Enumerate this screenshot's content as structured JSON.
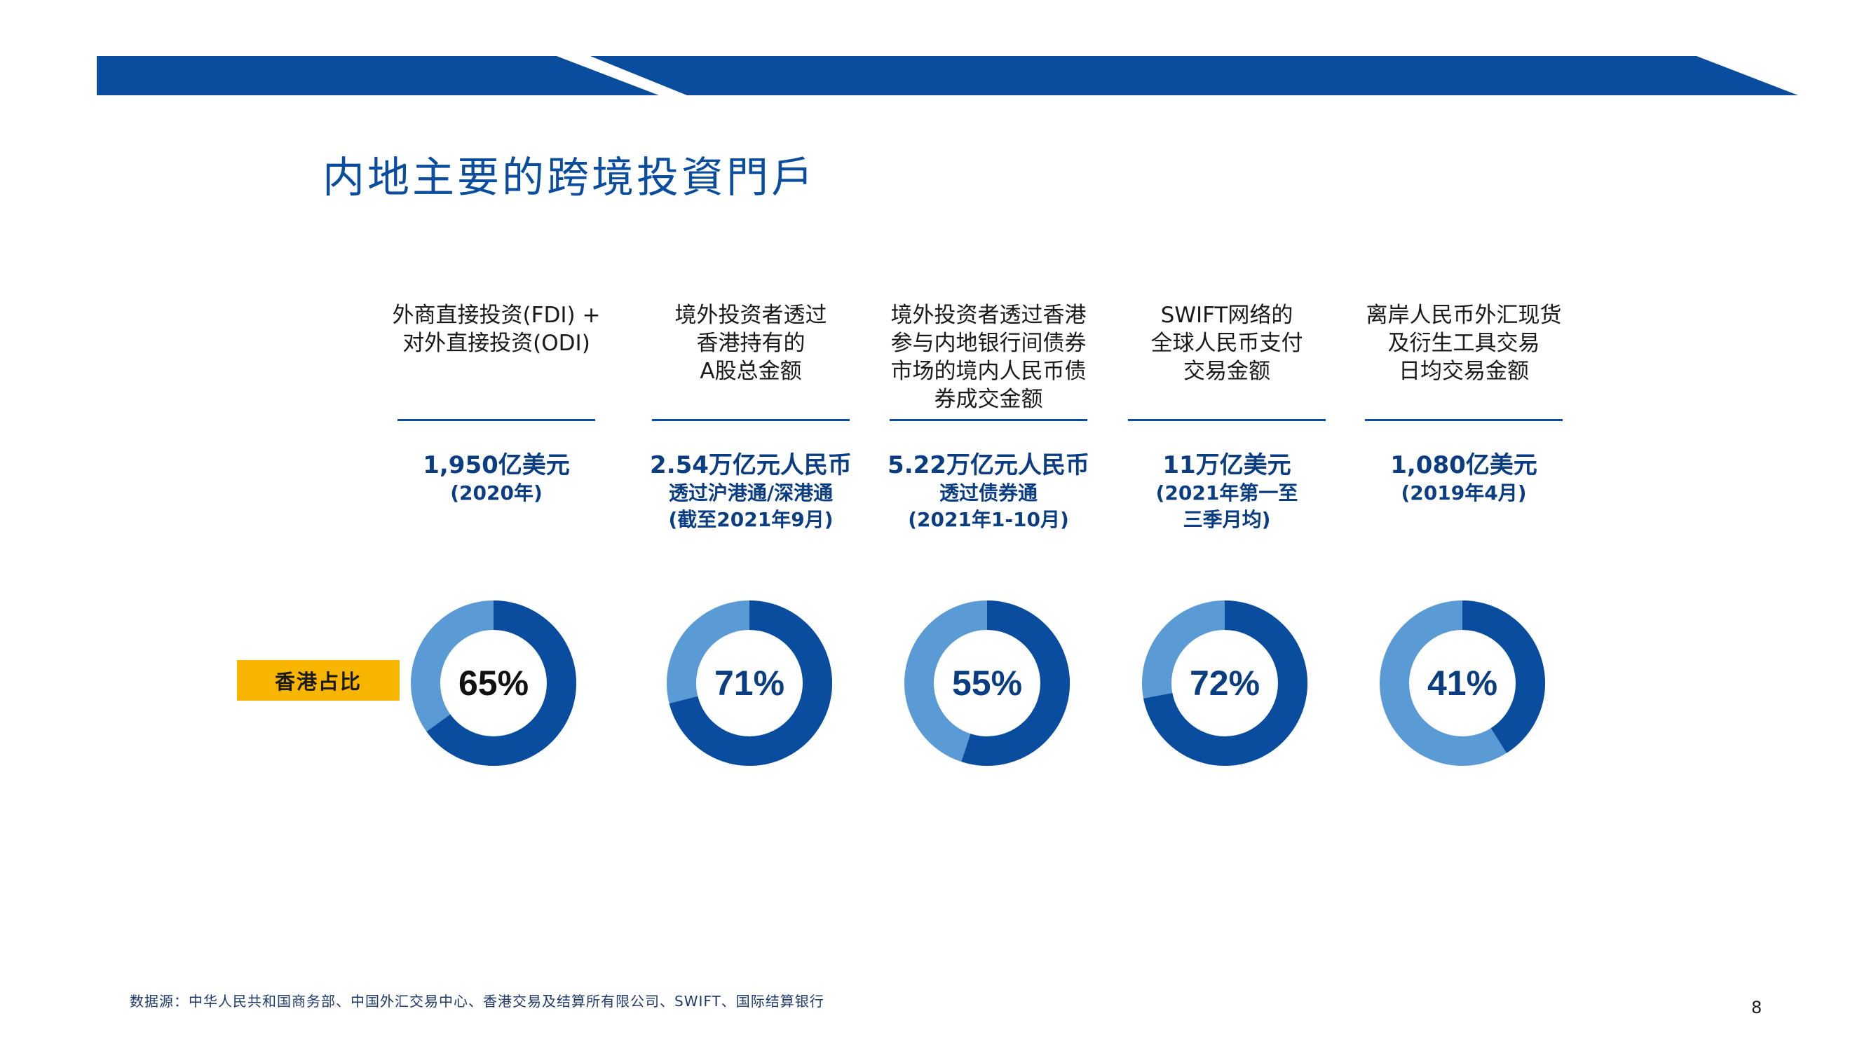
{
  "page": {
    "title": "内地主要的跨境投資門戶",
    "badge_label": "香港占比",
    "source": "数据源：中华人民共和国商务部、中国外汇交易中心、香港交易及结算所有限公司、SWIFT、国际结算银行",
    "page_number": "8"
  },
  "colors": {
    "brand_blue": "#0a4d9e",
    "donut_dark": "#0a4d9e",
    "donut_light": "#5b9bd5",
    "badge_yellow": "#f7b500"
  },
  "columns": [
    {
      "heading": "外商直接投资(FDI) +\n对外直接投资(ODI)",
      "metric": "1,950亿美元",
      "period": "(2020年)"
    },
    {
      "heading": "境外投资者透过\n香港持有的\nA股总金额",
      "metric": "2.54万亿元人民币",
      "period": "透过沪港通/深港通\n(截至2021年9月)"
    },
    {
      "heading": "境外投资者透过香港\n参与内地银行间债券\n市场的境内人民币债\n券成交金额",
      "metric": "5.22万亿元人民币",
      "period": "透过债券通\n(2021年1-10月)"
    },
    {
      "heading": "SWIFT网络的\n全球人民币支付\n交易金额",
      "metric": "11万亿美元",
      "period": "(2021年第一至\n三季月均)"
    },
    {
      "heading": "离岸人民币外汇现货\n及衍生工具交易\n日均交易金额",
      "metric": "1,080亿美元",
      "period": "(2019年4月)"
    }
  ],
  "chart_data": {
    "type": "pie",
    "title": "",
    "series_label": "香港占比",
    "values": [
      65,
      71,
      55,
      72,
      41
    ],
    "labels": [
      "65%",
      "71%",
      "55%",
      "72%",
      "41%"
    ],
    "label_colors": [
      "#111111",
      "#0a3d82",
      "#0a3d82",
      "#0a3d82",
      "#0a3d82"
    ]
  }
}
